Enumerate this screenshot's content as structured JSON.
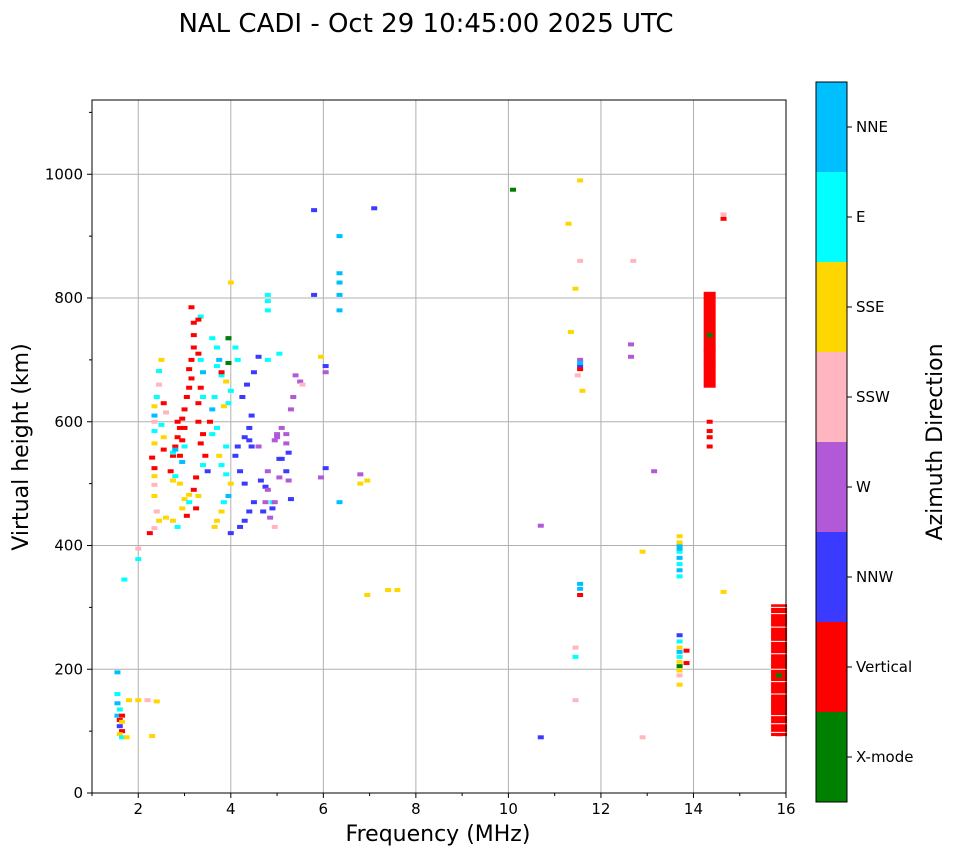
{
  "chart_data": {
    "type": "scatter",
    "title": "NAL CADI - Oct 29 10:45:00 2025 UTC",
    "xlabel": "Frequency (MHz)",
    "ylabel": "Virtual height (km)",
    "xlim": [
      1,
      16
    ],
    "ylim": [
      0,
      1120
    ],
    "grid": true,
    "x_ticks": [
      2,
      4,
      6,
      8,
      10,
      12,
      14,
      16
    ],
    "y_ticks": [
      0,
      200,
      400,
      600,
      800,
      1000
    ],
    "colorbar": {
      "label": "Azimuth Direction",
      "categories": [
        {
          "name": "X-mode",
          "color": "#008000"
        },
        {
          "name": "Vertical",
          "color": "#ff0000"
        },
        {
          "name": "NNW",
          "color": "#3b3bff"
        },
        {
          "name": "W",
          "color": "#b159d6"
        },
        {
          "name": "SSW",
          "color": "#ffb6c1"
        },
        {
          "name": "SSE",
          "color": "#ffd700"
        },
        {
          "name": "E",
          "color": "#00ffff"
        },
        {
          "name": "NNE",
          "color": "#00bfff"
        }
      ]
    },
    "points": [
      [
        "NNE",
        1.55,
        195
      ],
      [
        "E",
        1.55,
        160
      ],
      [
        "NNE",
        1.55,
        145
      ],
      [
        "E",
        1.6,
        135
      ],
      [
        "NNE",
        1.55,
        125
      ],
      [
        "Vertical",
        1.6,
        118
      ],
      [
        "SSE",
        1.65,
        115
      ],
      [
        "NNW",
        1.6,
        108
      ],
      [
        "Vertical",
        1.65,
        100
      ],
      [
        "SSE",
        1.6,
        95
      ],
      [
        "E",
        1.65,
        90
      ],
      [
        "SSE",
        1.75,
        90
      ],
      [
        "SSE",
        2.3,
        92
      ],
      [
        "SSE",
        1.8,
        150
      ],
      [
        "SSE",
        2.0,
        150
      ],
      [
        "SSW",
        2.2,
        150
      ],
      [
        "SSE",
        2.4,
        148
      ],
      [
        "Vertical",
        1.65,
        125
      ],
      [
        "E",
        2.0,
        378
      ],
      [
        "SSW",
        2.0,
        395
      ],
      [
        "E",
        1.7,
        345
      ],
      [
        "Vertical",
        2.25,
        420
      ],
      [
        "SSW",
        2.35,
        428
      ],
      [
        "SSE",
        2.45,
        440
      ],
      [
        "SSE",
        2.6,
        445
      ],
      [
        "SSW",
        2.4,
        455
      ],
      [
        "SSE",
        2.75,
        440
      ],
      [
        "E",
        2.85,
        430
      ],
      [
        "SSE",
        2.95,
        460
      ],
      [
        "SSE",
        3.0,
        475
      ],
      [
        "SSE",
        3.1,
        482
      ],
      [
        "Vertical",
        3.05,
        448
      ],
      [
        "SSE",
        2.9,
        500
      ],
      [
        "SSE",
        2.35,
        480
      ],
      [
        "SSW",
        2.35,
        498
      ],
      [
        "SSE",
        2.35,
        512
      ],
      [
        "Vertical",
        2.35,
        525
      ],
      [
        "Vertical",
        2.3,
        542
      ],
      [
        "SSE",
        2.35,
        565
      ],
      [
        "E",
        2.35,
        585
      ],
      [
        "SSW",
        2.35,
        600
      ],
      [
        "NNE",
        2.35,
        610
      ],
      [
        "SSE",
        2.35,
        625
      ],
      [
        "E",
        2.4,
        640
      ],
      [
        "SSW",
        2.45,
        660
      ],
      [
        "E",
        2.45,
        682
      ],
      [
        "SSE",
        2.5,
        700
      ],
      [
        "Vertical",
        2.55,
        555
      ],
      [
        "SSE",
        2.55,
        575
      ],
      [
        "E",
        2.5,
        595
      ],
      [
        "SSW",
        2.6,
        615
      ],
      [
        "Vertical",
        2.55,
        630
      ],
      [
        "Vertical",
        2.75,
        545
      ],
      [
        "Vertical",
        2.8,
        560
      ],
      [
        "E",
        2.75,
        550
      ],
      [
        "Vertical",
        2.85,
        575
      ],
      [
        "Vertical",
        2.9,
        590
      ],
      [
        "Vertical",
        2.95,
        605
      ],
      [
        "NNE",
        2.8,
        555
      ],
      [
        "Vertical",
        3.0,
        620
      ],
      [
        "Vertical",
        3.05,
        640
      ],
      [
        "Vertical",
        3.1,
        655
      ],
      [
        "Vertical",
        3.15,
        670
      ],
      [
        "Vertical",
        3.1,
        685
      ],
      [
        "Vertical",
        3.15,
        700
      ],
      [
        "Vertical",
        3.2,
        720
      ],
      [
        "Vertical",
        3.2,
        740
      ],
      [
        "Vertical",
        3.2,
        760
      ],
      [
        "Vertical",
        3.15,
        785
      ],
      [
        "Vertical",
        2.95,
        570
      ],
      [
        "Vertical",
        3.0,
        590
      ],
      [
        "E",
        3.0,
        560
      ],
      [
        "Vertical",
        2.9,
        545
      ],
      [
        "NNE",
        2.95,
        535
      ],
      [
        "Vertical",
        2.7,
        520
      ],
      [
        "SSE",
        2.75,
        505
      ],
      [
        "E",
        2.8,
        512
      ],
      [
        "Vertical",
        2.85,
        600
      ],
      [
        "Vertical",
        3.3,
        600
      ],
      [
        "Vertical",
        3.4,
        580
      ],
      [
        "Vertical",
        3.35,
        565
      ],
      [
        "Vertical",
        3.45,
        545
      ],
      [
        "E",
        3.4,
        530
      ],
      [
        "NNW",
        3.5,
        520
      ],
      [
        "Vertical",
        3.25,
        510
      ],
      [
        "Vertical",
        3.2,
        490
      ],
      [
        "E",
        3.1,
        470
      ],
      [
        "SSE",
        3.3,
        480
      ],
      [
        "Vertical",
        3.25,
        460
      ],
      [
        "Vertical",
        3.3,
        630
      ],
      [
        "E",
        3.4,
        640
      ],
      [
        "Vertical",
        3.35,
        655
      ],
      [
        "NNE",
        3.4,
        680
      ],
      [
        "E",
        3.35,
        700
      ],
      [
        "Vertical",
        3.3,
        710
      ],
      [
        "E",
        3.35,
        770
      ],
      [
        "Vertical",
        3.3,
        765
      ],
      [
        "E",
        3.6,
        735
      ],
      [
        "E",
        3.7,
        720
      ],
      [
        "NNE",
        3.75,
        700
      ],
      [
        "E",
        3.7,
        690
      ],
      [
        "E",
        3.8,
        675
      ],
      [
        "SSE",
        3.9,
        665
      ],
      [
        "Vertical",
        3.8,
        680
      ],
      [
        "X-mode",
        3.95,
        695
      ],
      [
        "NNW",
        3.95,
        735
      ],
      [
        "E",
        4.1,
        720
      ],
      [
        "E",
        4.15,
        700
      ],
      [
        "E",
        4.0,
        650
      ],
      [
        "E",
        3.95,
        630
      ],
      [
        "SSE",
        3.85,
        625
      ],
      [
        "E",
        3.65,
        640
      ],
      [
        "NNE",
        3.6,
        620
      ],
      [
        "E",
        3.7,
        590
      ],
      [
        "E",
        3.6,
        580
      ],
      [
        "Vertical",
        3.55,
        600
      ],
      [
        "E",
        3.9,
        560
      ],
      [
        "SSE",
        3.75,
        545
      ],
      [
        "E",
        3.8,
        530
      ],
      [
        "E",
        3.9,
        515
      ],
      [
        "SSE",
        4.0,
        500
      ],
      [
        "NNE",
        3.95,
        480
      ],
      [
        "E",
        3.85,
        470
      ],
      [
        "SSE",
        3.8,
        455
      ],
      [
        "SSE",
        3.7,
        440
      ],
      [
        "SSE",
        3.65,
        430
      ],
      [
        "SSE",
        4.0,
        825
      ],
      [
        "X-mode",
        3.95,
        735
      ],
      [
        "NNW",
        4.0,
        420
      ],
      [
        "NNW",
        4.2,
        430
      ],
      [
        "NNW",
        4.3,
        440
      ],
      [
        "NNW",
        4.4,
        455
      ],
      [
        "NNW",
        4.5,
        470
      ],
      [
        "NNW",
        4.3,
        500
      ],
      [
        "NNW",
        4.2,
        520
      ],
      [
        "NNW",
        4.1,
        545
      ],
      [
        "NNW",
        4.15,
        560
      ],
      [
        "NNW",
        4.3,
        575
      ],
      [
        "NNW",
        4.4,
        590
      ],
      [
        "NNW",
        4.45,
        610
      ],
      [
        "NNW",
        4.25,
        640
      ],
      [
        "NNW",
        4.35,
        660
      ],
      [
        "NNW",
        4.5,
        680
      ],
      [
        "NNW",
        4.6,
        705
      ],
      [
        "E",
        4.8,
        700
      ],
      [
        "E",
        4.8,
        780
      ],
      [
        "E",
        4.8,
        795
      ],
      [
        "E",
        4.8,
        805
      ],
      [
        "E",
        5.05,
        710
      ],
      [
        "NNW",
        4.45,
        560
      ],
      [
        "W",
        4.6,
        560
      ],
      [
        "W",
        4.8,
        520
      ],
      [
        "NNW",
        4.65,
        505
      ],
      [
        "NNW",
        4.75,
        495
      ],
      [
        "W",
        4.8,
        490
      ],
      [
        "W",
        4.75,
        470
      ],
      [
        "NNW",
        4.7,
        455
      ],
      [
        "NNW",
        4.9,
        460
      ],
      [
        "E",
        4.9,
        470
      ],
      [
        "SSW",
        4.95,
        430
      ],
      [
        "W",
        4.85,
        445
      ],
      [
        "W",
        4.95,
        470
      ],
      [
        "W",
        5.0,
        580
      ],
      [
        "W",
        4.95,
        570
      ],
      [
        "NNW",
        5.05,
        540
      ],
      [
        "W",
        5.0,
        575
      ],
      [
        "W",
        5.2,
        580
      ],
      [
        "W",
        5.3,
        620
      ],
      [
        "W",
        5.35,
        640
      ],
      [
        "W",
        5.5,
        665
      ],
      [
        "SSW",
        5.55,
        660
      ],
      [
        "W",
        5.4,
        675
      ],
      [
        "W",
        5.1,
        590
      ],
      [
        "W",
        5.2,
        565
      ],
      [
        "NNW",
        5.25,
        550
      ],
      [
        "NNW",
        5.1,
        540
      ],
      [
        "NNW",
        5.2,
        520
      ],
      [
        "W",
        5.25,
        505
      ],
      [
        "W",
        5.05,
        510
      ],
      [
        "NNW",
        5.3,
        475
      ],
      [
        "NNW",
        4.4,
        570
      ],
      [
        "NNW",
        5.8,
        805
      ],
      [
        "NNW",
        5.8,
        942
      ],
      [
        "NNW",
        7.1,
        945
      ],
      [
        "NNW",
        6.05,
        525
      ],
      [
        "NNW",
        6.05,
        690
      ],
      [
        "W",
        6.05,
        680
      ],
      [
        "SSE",
        5.95,
        705
      ],
      [
        "NNE",
        6.35,
        470
      ],
      [
        "NNE",
        6.35,
        780
      ],
      [
        "NNE",
        6.35,
        805
      ],
      [
        "NNE",
        6.35,
        825
      ],
      [
        "NNE",
        6.35,
        840
      ],
      [
        "NNE",
        6.35,
        900
      ],
      [
        "W",
        6.8,
        515
      ],
      [
        "SSE",
        6.8,
        500
      ],
      [
        "SSE",
        6.95,
        505
      ],
      [
        "SSE",
        6.95,
        320
      ],
      [
        "SSE",
        7.4,
        328
      ],
      [
        "SSE",
        7.6,
        328
      ],
      [
        "W",
        5.95,
        510
      ],
      [
        "X-mode",
        10.1,
        975
      ],
      [
        "NNW",
        10.7,
        90
      ],
      [
        "W",
        10.7,
        432
      ],
      [
        "SSE",
        11.35,
        745
      ],
      [
        "SSE",
        11.45,
        815
      ],
      [
        "SSW",
        11.55,
        860
      ],
      [
        "SSE",
        11.55,
        990
      ],
      [
        "NNE",
        11.55,
        330
      ],
      [
        "NNE",
        11.55,
        338
      ],
      [
        "Vertical",
        11.55,
        320
      ],
      [
        "NNW",
        11.55,
        690
      ],
      [
        "W",
        11.55,
        700
      ],
      [
        "Vertical",
        11.55,
        685
      ],
      [
        "NNE",
        11.55,
        695
      ],
      [
        "SSW",
        11.5,
        675
      ],
      [
        "SSW",
        11.45,
        235
      ],
      [
        "E",
        11.45,
        220
      ],
      [
        "SSW",
        11.45,
        150
      ],
      [
        "SSE",
        11.3,
        920
      ],
      [
        "SSE",
        11.6,
        650
      ],
      [
        "SSW",
        12.7,
        860
      ],
      [
        "W",
        12.65,
        725
      ],
      [
        "W",
        12.65,
        705
      ],
      [
        "SSE",
        12.9,
        390
      ],
      [
        "SSW",
        12.9,
        90
      ],
      [
        "W",
        13.15,
        520
      ],
      [
        "SSE",
        13.7,
        415
      ],
      [
        "NNE",
        13.7,
        400
      ],
      [
        "E",
        13.7,
        390
      ],
      [
        "NNE",
        13.7,
        380
      ],
      [
        "E",
        13.7,
        370
      ],
      [
        "NNE",
        13.7,
        360
      ],
      [
        "E",
        13.7,
        350
      ],
      [
        "SSE",
        13.7,
        405
      ],
      [
        "NNE",
        13.7,
        395
      ],
      [
        "NNW",
        13.7,
        255
      ],
      [
        "E",
        13.7,
        245
      ],
      [
        "SSE",
        13.7,
        235
      ],
      [
        "NNE",
        13.7,
        228
      ],
      [
        "E",
        13.7,
        220
      ],
      [
        "SSE",
        13.7,
        212
      ],
      [
        "X-mode",
        13.7,
        205
      ],
      [
        "SSE",
        13.7,
        198
      ],
      [
        "SSW",
        13.7,
        190
      ],
      [
        "SSE",
        13.7,
        175
      ],
      [
        "Vertical",
        13.85,
        230
      ],
      [
        "Vertical",
        13.85,
        210
      ],
      [
        "Vertical",
        14.35,
        800
      ],
      [
        "Vertical",
        14.35,
        780
      ],
      [
        "Vertical",
        14.35,
        760
      ],
      [
        "X-mode",
        14.35,
        740
      ],
      [
        "Vertical",
        14.35,
        720
      ],
      [
        "Vertical",
        14.35,
        700
      ],
      [
        "Vertical",
        14.35,
        680
      ],
      [
        "Vertical",
        14.35,
        660
      ],
      [
        "Vertical",
        14.35,
        600
      ],
      [
        "Vertical",
        14.35,
        585
      ],
      [
        "Vertical",
        14.35,
        575
      ],
      [
        "Vertical",
        14.35,
        560
      ],
      [
        "SSE",
        14.65,
        325
      ],
      [
        "SSW",
        14.65,
        935
      ],
      [
        "Vertical",
        14.65,
        928
      ],
      [
        "Vertical",
        15.85,
        300
      ],
      [
        "Vertical",
        15.85,
        290
      ],
      [
        "Vertical",
        15.85,
        280
      ],
      [
        "Vertical",
        15.85,
        270
      ],
      [
        "Vertical",
        15.85,
        260
      ],
      [
        "Vertical",
        15.85,
        250
      ],
      [
        "Vertical",
        15.85,
        240
      ],
      [
        "Vertical",
        15.85,
        230
      ],
      [
        "Vertical",
        15.85,
        220
      ],
      [
        "Vertical",
        15.85,
        210
      ],
      [
        "Vertical",
        15.85,
        200
      ],
      [
        "X-mode",
        15.85,
        190
      ],
      [
        "Vertical",
        15.85,
        175
      ],
      [
        "Vertical",
        15.85,
        160
      ],
      [
        "Vertical",
        15.85,
        140
      ],
      [
        "Vertical",
        15.85,
        120
      ],
      [
        "Vertical",
        15.85,
        110
      ],
      [
        "Vertical",
        15.85,
        95
      ]
    ]
  }
}
